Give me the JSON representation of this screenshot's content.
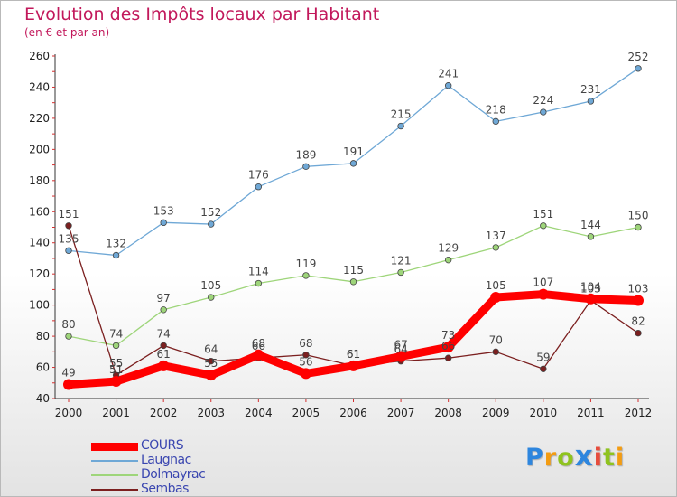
{
  "title": "Evolution des Impôts locaux par Habitant",
  "subtitle": "(en € et par an)",
  "logo": {
    "text": "Proxiti",
    "colors": [
      "#2e86de",
      "#f39c12",
      "#8fc31f",
      "#2e86de",
      "#e74c3c",
      "#8fc31f",
      "#f39c12"
    ]
  },
  "chart_data": {
    "type": "line",
    "x": [
      "2000",
      "2001",
      "2002",
      "2003",
      "2004",
      "2005",
      "2006",
      "2007",
      "2008",
      "2009",
      "2010",
      "2011",
      "2012"
    ],
    "ylim": [
      40,
      260
    ],
    "yticks": [
      40,
      60,
      80,
      100,
      120,
      140,
      160,
      180,
      200,
      220,
      240,
      260
    ],
    "grid": false,
    "legend_position": "bottom-left",
    "series": [
      {
        "name": "COURS",
        "color": "#ff0000",
        "values": [
          49,
          51,
          61,
          55,
          68,
          56,
          61,
          67,
          73,
          105,
          107,
          104,
          103
        ]
      },
      {
        "name": "Laugnac",
        "color": "#6fa8d6",
        "values": [
          135,
          132,
          153,
          152,
          176,
          189,
          191,
          215,
          241,
          218,
          224,
          231,
          252
        ]
      },
      {
        "name": "Dolmayrac",
        "color": "#9ed57a",
        "values": [
          80,
          74,
          97,
          105,
          114,
          119,
          115,
          121,
          129,
          137,
          151,
          144,
          150
        ]
      },
      {
        "name": "Sembas",
        "color": "#7b1f1f",
        "values": [
          151,
          55,
          74,
          64,
          66,
          68,
          61,
          64,
          66,
          70,
          59,
          103,
          82
        ]
      }
    ]
  }
}
